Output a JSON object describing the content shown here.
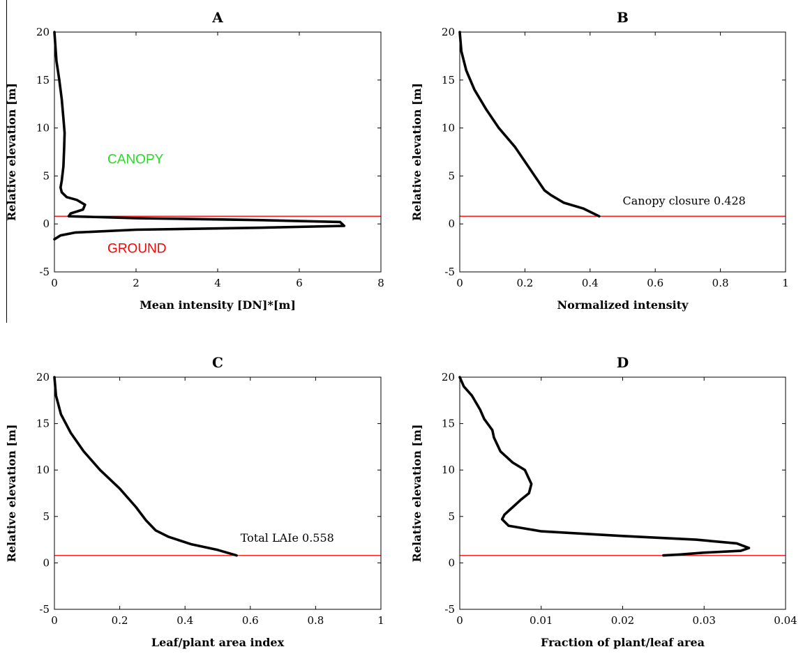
{
  "chart_data": [
    {
      "type": "line",
      "panel": "A",
      "title": "A",
      "xlabel": "Mean intensity [DN]*[m]",
      "ylabel": "Relative elevation [m]",
      "xlim": [
        0,
        8
      ],
      "ylim": [
        -5,
        20
      ],
      "xticks": [
        0,
        2,
        4,
        6,
        8
      ],
      "xtick_labels": [
        "0",
        "2",
        "4",
        "6",
        "8"
      ],
      "yticks": [
        -5,
        0,
        5,
        10,
        15,
        20
      ],
      "ytick_labels": [
        "-5",
        "0",
        "5",
        "10",
        "15",
        "20"
      ],
      "hline": 0.8,
      "hline_color": "#ff0000",
      "line_color": "#000000",
      "series": [
        {
          "x": [
            0.0,
            0.05,
            0.12,
            0.18,
            0.22,
            0.25,
            0.24,
            0.22,
            0.18,
            0.15,
            0.18,
            0.3,
            0.55,
            0.75,
            0.7,
            0.4,
            0.35,
            2.0,
            5.0,
            7.0,
            7.1,
            5.0,
            2.0,
            0.5,
            0.15,
            0.0
          ],
          "y": [
            20.0,
            17.0,
            15.0,
            13.0,
            11.0,
            9.5,
            8.0,
            6.0,
            4.5,
            3.8,
            3.3,
            2.8,
            2.5,
            2.0,
            1.5,
            1.1,
            0.8,
            0.6,
            0.4,
            0.2,
            -0.2,
            -0.4,
            -0.6,
            -0.9,
            -1.2,
            -1.6
          ]
        }
      ],
      "annotations": [
        {
          "text": "CANOPY",
          "x": 1.3,
          "y": 6.3,
          "color": "#22dd22"
        },
        {
          "text": "GROUND",
          "x": 1.3,
          "y": -3.0,
          "color": "#ff0000"
        }
      ]
    },
    {
      "type": "line",
      "panel": "B",
      "title": "B",
      "xlabel": "Normalized intensity",
      "ylabel": "Relative elevation [m]",
      "xlim": [
        0,
        1
      ],
      "ylim": [
        -5,
        20
      ],
      "xticks": [
        0,
        0.2,
        0.4,
        0.6,
        0.8,
        1
      ],
      "xtick_labels": [
        "0",
        "0.2",
        "0.4",
        "0.6",
        "0.8",
        "1"
      ],
      "yticks": [
        -5,
        0,
        5,
        10,
        15,
        20
      ],
      "ytick_labels": [
        "-5",
        "0",
        "5",
        "10",
        "15",
        "20"
      ],
      "hline": 0.8,
      "hline_color": "#ff0000",
      "line_color": "#000000",
      "series": [
        {
          "x": [
            0.0,
            0.005,
            0.02,
            0.045,
            0.08,
            0.12,
            0.17,
            0.21,
            0.24,
            0.26,
            0.28,
            0.32,
            0.38,
            0.428
          ],
          "y": [
            20.0,
            18.0,
            16.0,
            14.0,
            12.0,
            10.0,
            8.0,
            6.0,
            4.5,
            3.5,
            3.0,
            2.2,
            1.6,
            0.8
          ]
        }
      ],
      "annotations": [
        {
          "text": "Canopy closure 0.428",
          "x": 0.5,
          "y": 2.0,
          "color": "#000000"
        }
      ]
    },
    {
      "type": "line",
      "panel": "C",
      "title": "C",
      "xlabel": "Leaf/plant area index",
      "ylabel": "Relative elevation [m]",
      "xlim": [
        0,
        1
      ],
      "ylim": [
        -5,
        20
      ],
      "xticks": [
        0,
        0.2,
        0.4,
        0.6,
        0.8,
        1
      ],
      "xtick_labels": [
        "0",
        "0.2",
        "0.4",
        "0.6",
        "0.8",
        "1"
      ],
      "yticks": [
        -5,
        0,
        5,
        10,
        15,
        20
      ],
      "ytick_labels": [
        "-5",
        "0",
        "5",
        "10",
        "15",
        "20"
      ],
      "hline": 0.8,
      "hline_color": "#ff0000",
      "line_color": "#000000",
      "series": [
        {
          "x": [
            0.0,
            0.005,
            0.02,
            0.05,
            0.09,
            0.14,
            0.2,
            0.25,
            0.28,
            0.31,
            0.35,
            0.42,
            0.5,
            0.558
          ],
          "y": [
            20.0,
            18.0,
            16.0,
            14.0,
            12.0,
            10.0,
            8.0,
            6.0,
            4.6,
            3.5,
            2.8,
            2.0,
            1.4,
            0.8
          ]
        }
      ],
      "annotations": [
        {
          "text": "Total LAIe 0.558",
          "x": 0.57,
          "y": 2.3,
          "color": "#000000"
        }
      ]
    },
    {
      "type": "line",
      "panel": "D",
      "title": "D",
      "xlabel": "Fraction of plant/leaf area",
      "ylabel": "Relative elevation [m]",
      "xlim": [
        0,
        0.04
      ],
      "ylim": [
        -5,
        20
      ],
      "xticks": [
        0,
        0.01,
        0.02,
        0.03,
        0.04
      ],
      "xtick_labels": [
        "0",
        "0.01",
        "0.02",
        "0.03",
        "0.04"
      ],
      "yticks": [
        -5,
        0,
        5,
        10,
        15,
        20
      ],
      "ytick_labels": [
        "-5",
        "0",
        "5",
        "10",
        "15",
        "20"
      ],
      "hline": 0.8,
      "hline_color": "#ff0000",
      "line_color": "#000000",
      "series": [
        {
          "x": [
            0.0,
            0.0005,
            0.0015,
            0.0025,
            0.003,
            0.004,
            0.0042,
            0.005,
            0.0065,
            0.008,
            0.0088,
            0.0085,
            0.0075,
            0.0065,
            0.0055,
            0.0052,
            0.006,
            0.01,
            0.02,
            0.029,
            0.034,
            0.0355,
            0.0345,
            0.03,
            0.027,
            0.025
          ],
          "y": [
            20.0,
            19.0,
            18.0,
            16.5,
            15.5,
            14.3,
            13.5,
            12.0,
            10.8,
            10.0,
            8.5,
            7.5,
            6.8,
            6.0,
            5.2,
            4.7,
            4.0,
            3.4,
            2.9,
            2.5,
            2.1,
            1.6,
            1.3,
            1.1,
            0.9,
            0.8
          ]
        }
      ],
      "annotations": []
    }
  ]
}
